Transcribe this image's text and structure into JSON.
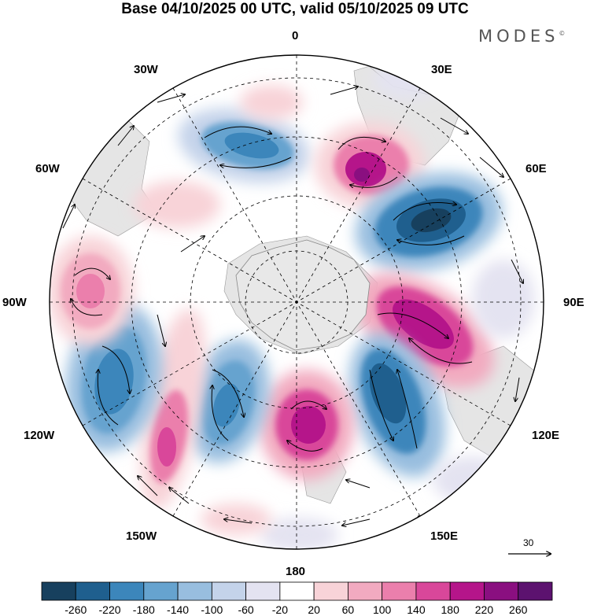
{
  "title": "Base 04/10/2025 00 UTC, valid 05/10/2025 09 UTC",
  "brand": "MODES",
  "brand_mark": "©",
  "longitude_labels": {
    "n0": "0",
    "e30": "30E",
    "e60": "60E",
    "e90": "90E",
    "e120": "120E",
    "e150": "150E",
    "s180": "180",
    "w150": "150W",
    "w120": "120W",
    "w90": "90W",
    "w60": "60W",
    "w30": "30W"
  },
  "vector_reference": {
    "value": "30"
  },
  "colorbar": {
    "ticks": [
      "-260",
      "-220",
      "-180",
      "-140",
      "-100",
      "-60",
      "-20",
      "20",
      "60",
      "100",
      "140",
      "180",
      "220",
      "260"
    ],
    "colors": [
      "#17405e",
      "#1f5f8e",
      "#3c86bb",
      "#66a3cf",
      "#98bedf",
      "#c4d3ea",
      "#e4e3f1",
      "#ffffff",
      "#f8d3d8",
      "#f2aac0",
      "#eb7fac",
      "#d9479a",
      "#b5158a",
      "#8a0f80",
      "#5c126f"
    ]
  },
  "anomalies": [
    {
      "name": "anomaly-neg-southeast-atlantic",
      "value": -180
    },
    {
      "name": "anomaly-pos-south-africa",
      "value": 240
    },
    {
      "name": "anomaly-neg-southern-indian-ocean",
      "value": -260
    },
    {
      "name": "anomaly-pos-kerguelen",
      "value": 240
    },
    {
      "name": "anomaly-neg-southwest-australia",
      "value": -220
    },
    {
      "name": "anomaly-pos-ross-sea",
      "value": 230
    },
    {
      "name": "anomaly-neg-amundsen-sea",
      "value": -180
    },
    {
      "name": "anomaly-pos-south-pacific",
      "value": 200
    },
    {
      "name": "anomaly-neg-southeast-pacific",
      "value": -200
    },
    {
      "name": "anomaly-pos-west-of-chile",
      "value": 160
    }
  ]
}
